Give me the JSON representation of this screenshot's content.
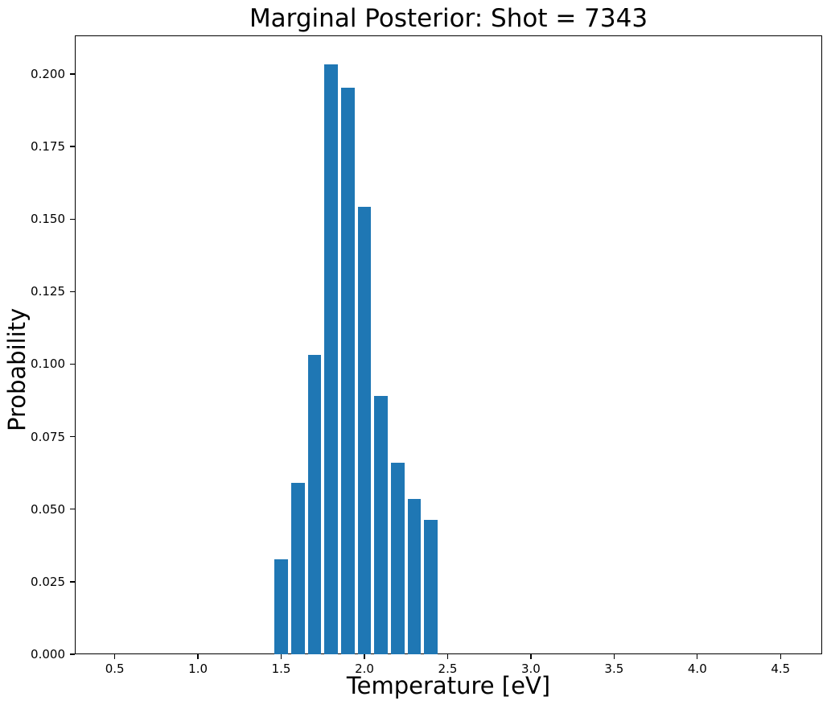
{
  "figure": {
    "background_color": "#ffffff",
    "text_color": "#000000",
    "axis_color": "#000000"
  },
  "chart_data": {
    "type": "bar",
    "title": "Marginal Posterior: Shot = 7343",
    "xlabel": "Temperature [eV]",
    "ylabel": "Probability",
    "bar_color": "#1f77b4",
    "categories": [
      1.5,
      1.6,
      1.7,
      1.8,
      1.9,
      2.0,
      2.1,
      2.2,
      2.3,
      2.4
    ],
    "values": [
      0.0327,
      0.059,
      0.1033,
      0.2032,
      0.1952,
      0.1542,
      0.0891,
      0.0659,
      0.0534,
      0.0463
    ],
    "bar_width": 0.08,
    "xlim": [
      0.26,
      4.75
    ],
    "ylim": [
      0.0,
      0.2133
    ],
    "xticks": [
      0.5,
      1.0,
      1.5,
      2.0,
      2.5,
      3.0,
      3.5,
      4.0,
      4.5
    ],
    "xtick_labels": [
      "0.5",
      "1.0",
      "1.5",
      "2.0",
      "2.5",
      "3.0",
      "3.5",
      "4.0",
      "4.5"
    ],
    "yticks": [
      0.0,
      0.025,
      0.05,
      0.075,
      0.1,
      0.125,
      0.15,
      0.175,
      0.2
    ],
    "ytick_labels": [
      "0.000",
      "0.025",
      "0.050",
      "0.075",
      "0.100",
      "0.125",
      "0.150",
      "0.175",
      "0.200"
    ],
    "grid": false,
    "legend": null
  }
}
